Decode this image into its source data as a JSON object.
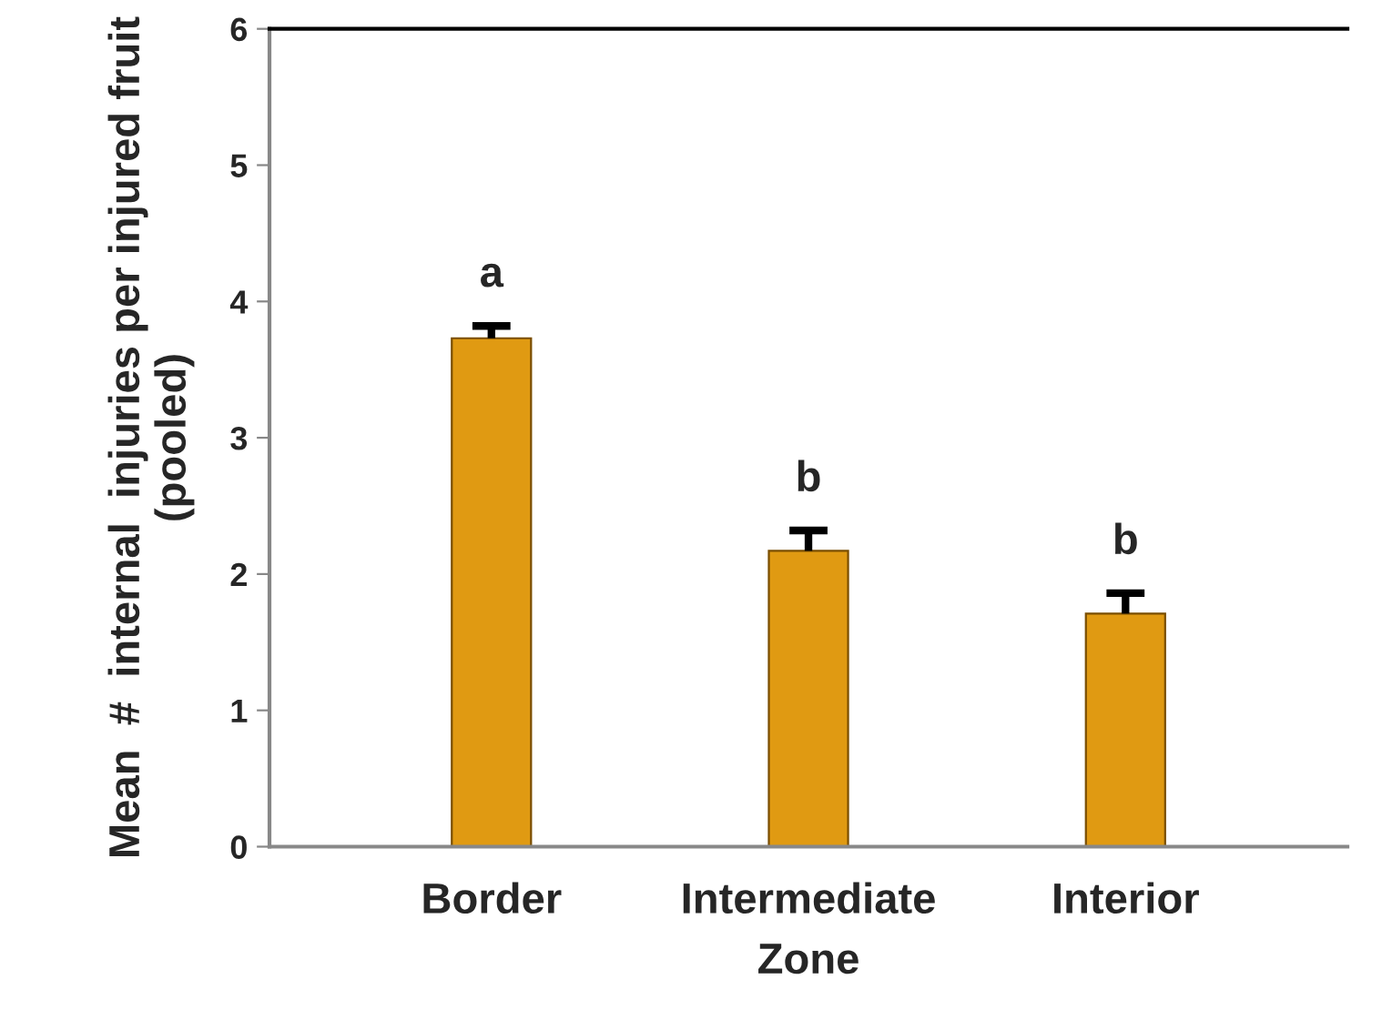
{
  "chart_data": {
    "type": "bar",
    "xlabel": "Zone",
    "ylabel": "Mean  #  internal  injuries per injured fruit (pooled)",
    "categories": [
      "Border",
      "Intermediate",
      "Interior"
    ],
    "values": [
      3.73,
      2.17,
      1.71
    ],
    "errors": [
      [
        3.73,
        3.82
      ],
      [
        2.17,
        2.32
      ],
      [
        1.71,
        1.86
      ]
    ],
    "color": "#e09a12",
    "ylim": [
      0,
      6
    ],
    "yticks": [
      0,
      1,
      2,
      3,
      4,
      5,
      6
    ],
    "grid": false,
    "legend": false,
    "annotations": [
      "a",
      "b",
      "b"
    ]
  }
}
